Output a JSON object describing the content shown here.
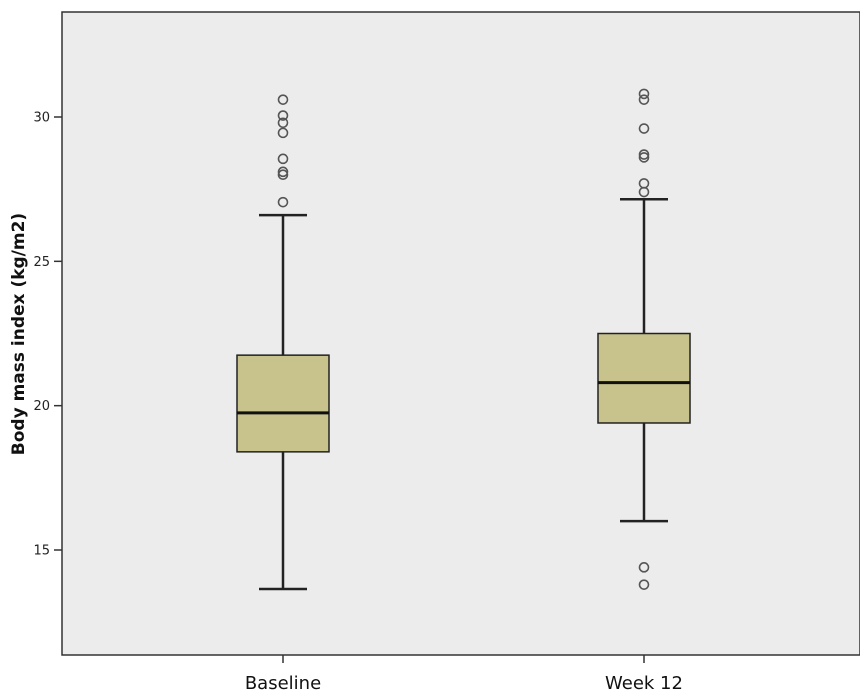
{
  "chart_data": {
    "type": "boxplot",
    "title": "",
    "xlabel": "",
    "ylabel": "Body mass index (kg/m2)",
    "ylim": [
      12,
      33
    ],
    "yticks": [
      15,
      20,
      25,
      30
    ],
    "grid": false,
    "colors": {
      "plot_bg": "#ececec",
      "box_fill": "#c8c38c",
      "stroke": "#222222",
      "outlier": "#555555"
    },
    "categories": [
      "Baseline",
      "Week 12"
    ],
    "boxes": [
      {
        "category": "Baseline",
        "whisker_low": 13.65,
        "q1": 18.4,
        "median": 19.75,
        "q3": 21.75,
        "whisker_high": 26.6,
        "outliers": [
          27.05,
          28.0,
          28.1,
          28.55,
          29.45,
          29.8,
          30.05,
          30.6
        ]
      },
      {
        "category": "Week 12",
        "whisker_low": 16.0,
        "q1": 19.4,
        "median": 20.8,
        "q3": 22.5,
        "whisker_high": 27.15,
        "outliers": [
          13.8,
          14.4,
          27.4,
          27.7,
          28.6,
          28.7,
          29.6,
          30.6,
          30.8
        ]
      }
    ]
  }
}
